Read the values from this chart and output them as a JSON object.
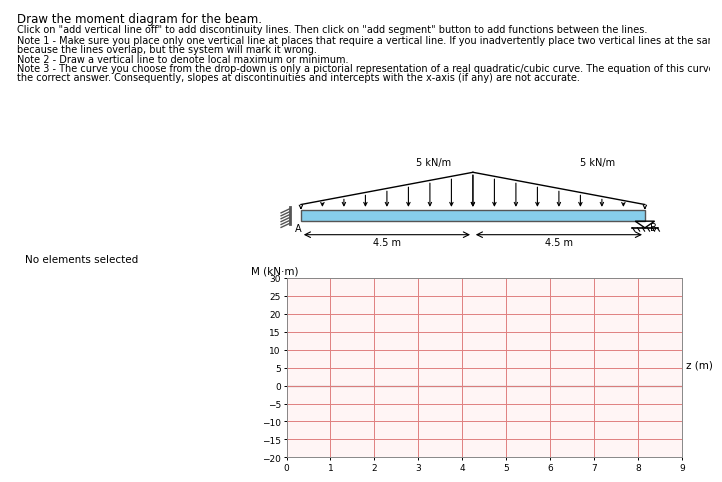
{
  "title_text": "Draw the moment diagram for the beam.",
  "no_elements_text": "No elements selected",
  "plot_label_y": "M (kN·m)",
  "plot_label_x": "z (m)",
  "ylim": [
    -20,
    30
  ],
  "xlim": [
    0,
    9
  ],
  "yticks": [
    -20,
    -15,
    -10,
    -5,
    0,
    5,
    10,
    15,
    20,
    25,
    30
  ],
  "xticks": [
    0,
    1,
    2,
    3,
    4,
    5,
    6,
    7,
    8,
    9
  ],
  "grid_color": "#e08080",
  "plot_area_bg": "#fff5f5",
  "content_bg": "#e8e8e8",
  "toolbar_bg": "#3a3a3a",
  "page_bg": "#f0f0f0",
  "load_left": "5 kN/m",
  "load_right": "5 kN/m",
  "span_left": "4.5 m",
  "span_right": "4.5 m"
}
